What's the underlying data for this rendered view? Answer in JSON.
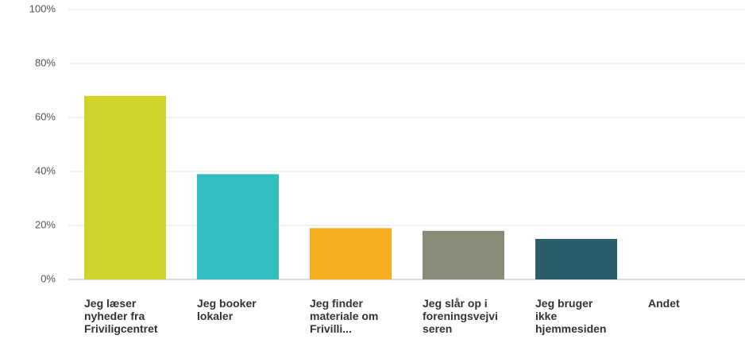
{
  "chart_data": {
    "type": "bar",
    "categories": [
      "Jeg læser nyheder fra Friviligcentret",
      "Jeg booker lokaler",
      "Jeg finder materiale om Frivilli...",
      "Jeg slår op i foreningsvejviseren",
      "Jeg bruger ikke hjemmesiden",
      "Andet"
    ],
    "values": [
      68,
      39,
      19,
      18,
      15,
      0
    ],
    "colors": [
      "#d0d32a",
      "#33bec1",
      "#f6ae1f",
      "#8a8b77",
      "#2c5d6b",
      "#999999"
    ],
    "ylim": [
      0,
      100
    ],
    "yticks": [
      {
        "value": 0,
        "label": "0%"
      },
      {
        "value": 20,
        "label": "20%"
      },
      {
        "value": 40,
        "label": "40%"
      },
      {
        "value": 60,
        "label": "60%"
      },
      {
        "value": 80,
        "label": "80%"
      },
      {
        "value": 100,
        "label": "100%"
      }
    ],
    "grid": true
  }
}
